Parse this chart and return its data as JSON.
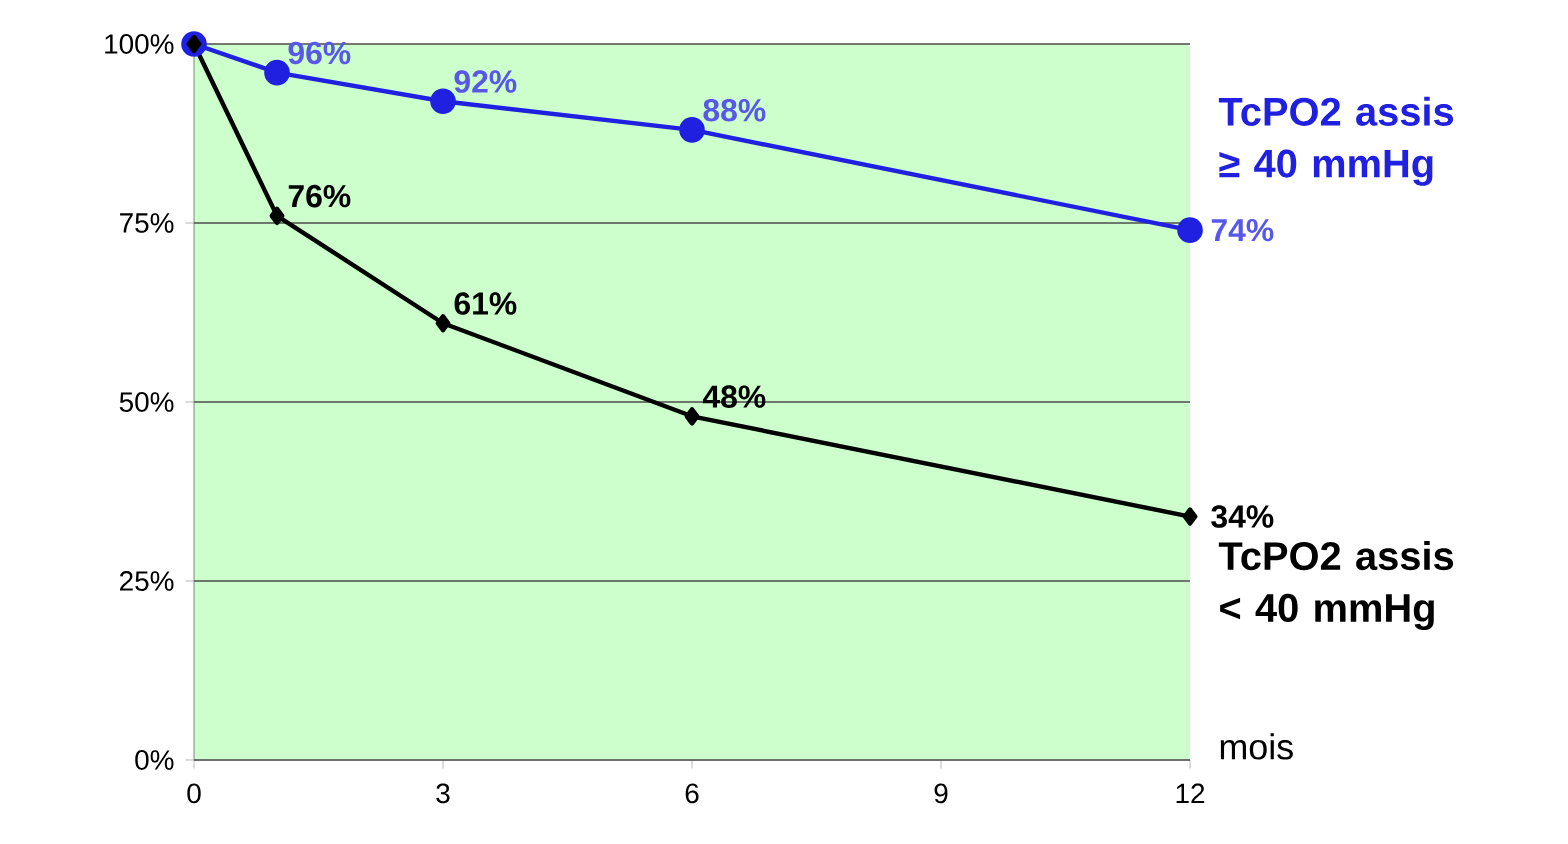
{
  "chart_data": {
    "type": "line",
    "xlabel": "mois",
    "xlim": [
      0,
      12
    ],
    "xticks": [
      0,
      3,
      6,
      9,
      12
    ],
    "ylim": [
      0,
      100
    ],
    "yticks": [
      {
        "value": 0,
        "label": "0%"
      },
      {
        "value": 25,
        "label": "25%"
      },
      {
        "value": 50,
        "label": "50%"
      },
      {
        "value": 75,
        "label": "75%"
      },
      {
        "value": 100,
        "label": "100%"
      }
    ],
    "grid": "y",
    "line_style": "solid",
    "series": [
      {
        "name": "TcPO2 assis ≥ 40 mmHg",
        "color": "#2020e0",
        "marker": "circle",
        "x": [
          0,
          1,
          3,
          6,
          12
        ],
        "values": [
          100,
          96,
          92,
          88,
          74
        ],
        "value_labels": [
          null,
          "96%",
          "92%",
          "88%",
          "74%"
        ]
      },
      {
        "name": "TcPO2 assis < 40 mmHg",
        "color": "#000000",
        "marker": "diamond",
        "x": [
          0,
          1,
          3,
          6,
          12
        ],
        "values": [
          100,
          76,
          61,
          48,
          34
        ],
        "value_labels": [
          null,
          "76%",
          "61%",
          "48%",
          "34%"
        ]
      }
    ]
  }
}
